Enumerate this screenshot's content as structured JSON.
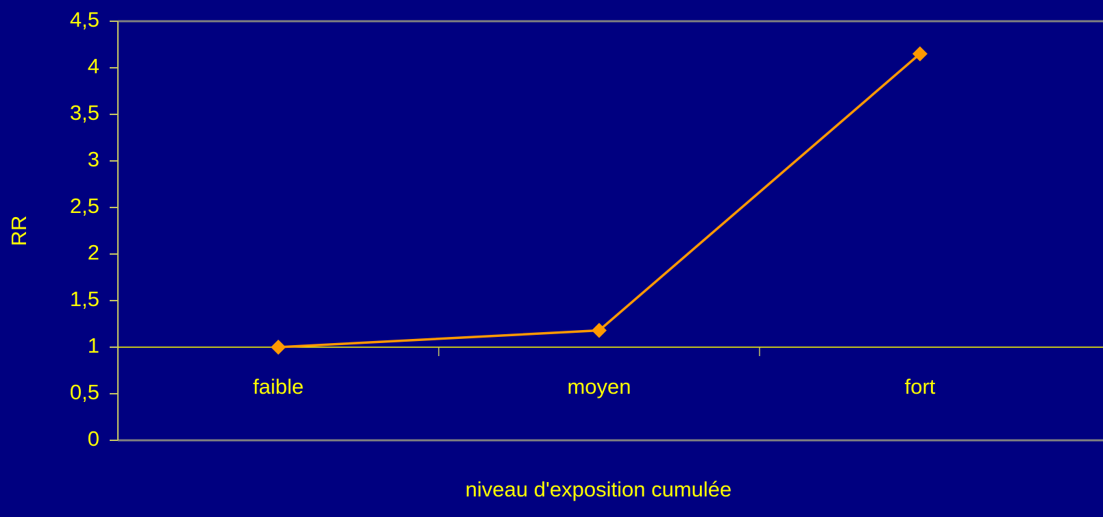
{
  "chart_data": {
    "type": "line",
    "categories": [
      "faible",
      "moyen",
      "fort"
    ],
    "values": [
      1,
      1.18,
      4.15
    ],
    "color": "#ff9900",
    "x_axis_label": "niveau d'exposition cumulée",
    "y_axis_label": "RR",
    "ylim": [
      0,
      4.5
    ],
    "yticks": [
      0,
      {
        "value": 0.5,
        "label": "0,5"
      },
      1,
      {
        "value": 1.5,
        "label": "1,5"
      },
      2,
      {
        "value": 2.5,
        "label": "2,5"
      },
      3,
      {
        "value": 3.5,
        "label": "3,5"
      },
      4,
      {
        "value": 4.5,
        "label": "4,5"
      }
    ],
    "x_axis_crosses_at": 1,
    "grid": false
  }
}
